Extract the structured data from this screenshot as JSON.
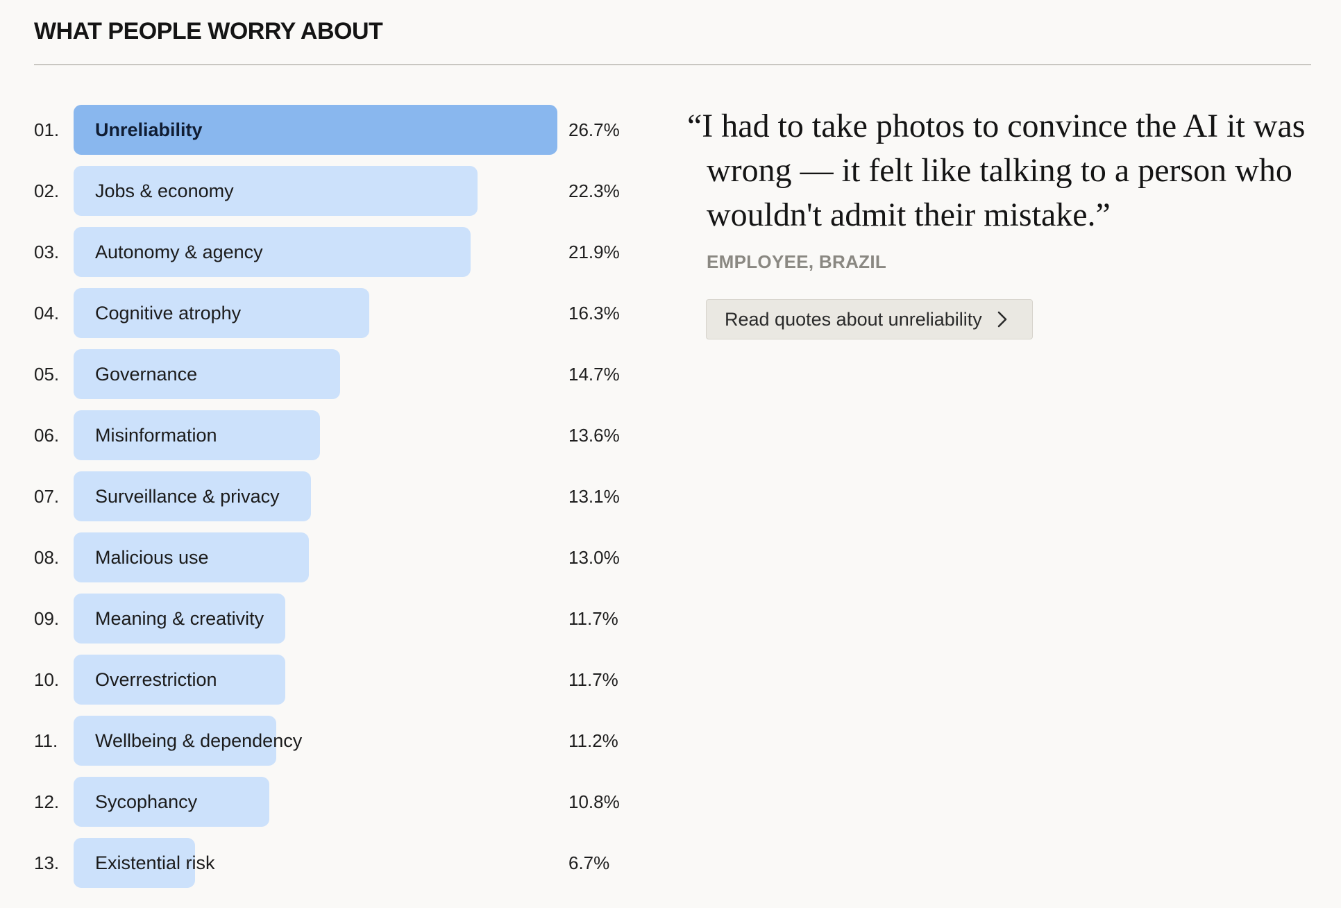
{
  "section": {
    "title": "WHAT PEOPLE WORRY ABOUT"
  },
  "chart_data": {
    "type": "bar",
    "orientation": "horizontal",
    "title": "WHAT PEOPLE WORRY ABOUT",
    "xlim": [
      0,
      26.7
    ],
    "highlighted": "Unreliability",
    "colors": {
      "highlight": "#89b7ee",
      "default": "#cce1fb"
    },
    "items": [
      {
        "rank": "01.",
        "label": "Unreliability",
        "value": 26.7,
        "value_label": "26.7%"
      },
      {
        "rank": "02.",
        "label": "Jobs & economy",
        "value": 22.3,
        "value_label": "22.3%"
      },
      {
        "rank": "03.",
        "label": "Autonomy & agency",
        "value": 21.9,
        "value_label": "21.9%"
      },
      {
        "rank": "04.",
        "label": "Cognitive atrophy",
        "value": 16.3,
        "value_label": "16.3%"
      },
      {
        "rank": "05.",
        "label": "Governance",
        "value": 14.7,
        "value_label": "14.7%"
      },
      {
        "rank": "06.",
        "label": "Misinformation",
        "value": 13.6,
        "value_label": "13.6%"
      },
      {
        "rank": "07.",
        "label": "Surveillance & privacy",
        "value": 13.1,
        "value_label": "13.1%"
      },
      {
        "rank": "08.",
        "label": "Malicious use",
        "value": 13.0,
        "value_label": "13.0%"
      },
      {
        "rank": "09.",
        "label": "Meaning & creativity",
        "value": 11.7,
        "value_label": "11.7%"
      },
      {
        "rank": "10.",
        "label": "Overrestriction",
        "value": 11.7,
        "value_label": "11.7%"
      },
      {
        "rank": "11.",
        "label": "Wellbeing & dependency",
        "value": 11.2,
        "value_label": "11.2%"
      },
      {
        "rank": "12.",
        "label": "Sycophancy",
        "value": 10.8,
        "value_label": "10.8%"
      },
      {
        "rank": "13.",
        "label": "Existential risk",
        "value": 6.7,
        "value_label": "6.7%"
      }
    ]
  },
  "quote": {
    "text": "“I had to take photos to convince the AI it was wrong — it felt like talking to a person who wouldn't admit their mistake.”",
    "attribution": "EMPLOYEE, BRAZIL",
    "button_label": "Read quotes about unreliability",
    "button_icon": "chevron-right-icon"
  }
}
